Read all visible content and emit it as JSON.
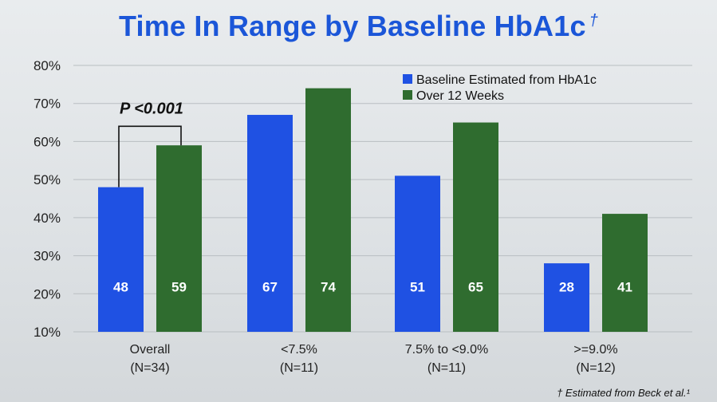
{
  "slide": {
    "title": "Time In Range by Baseline HbA1c",
    "title_mark": "†",
    "footnote": "† Estimated from Beck et al.¹"
  },
  "chart_data": {
    "type": "bar",
    "title": "Time In Range by Baseline HbA1c",
    "ylim": [
      10,
      80
    ],
    "yticks": [
      10,
      20,
      30,
      40,
      50,
      60,
      70,
      80
    ],
    "ytick_format": "%",
    "grid": true,
    "legend_position": "top-right",
    "categories": [
      {
        "label": "Overall",
        "n": "(N=34)"
      },
      {
        "label": "<7.5%",
        "n": "(N=11)"
      },
      {
        "label": "7.5% to <9.0%",
        "n": "(N=11)"
      },
      {
        "label": ">=9.0%",
        "n": "(N=12)"
      }
    ],
    "series": [
      {
        "name": "Baseline Estimated from HbA1c",
        "color": "#1f51e3",
        "values": [
          48,
          67,
          51,
          28
        ]
      },
      {
        "name": "Over 12 Weeks",
        "color": "#2f6c2f",
        "values": [
          59,
          74,
          65,
          41
        ]
      }
    ],
    "annotations": [
      {
        "text": "P <0.001",
        "category_index": 0
      }
    ]
  }
}
